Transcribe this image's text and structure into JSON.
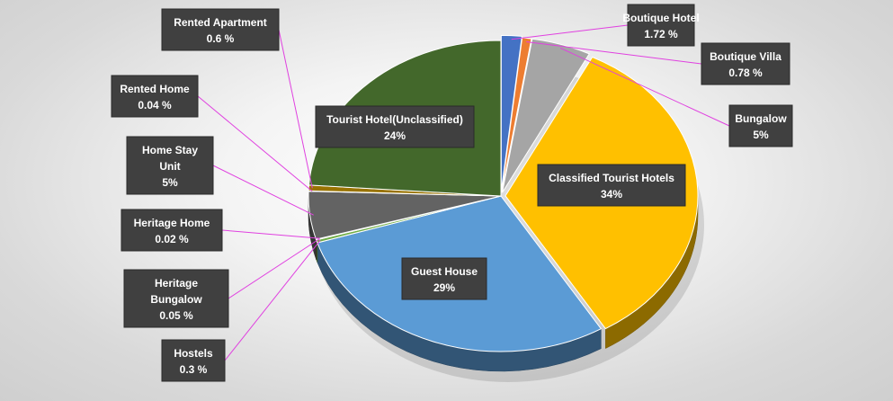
{
  "chart_data": {
    "type": "pie",
    "title": "",
    "slices": [
      {
        "label": "Boutique Hotel",
        "value_text": "1.72 %",
        "value": 1.72,
        "color": "#4472c4"
      },
      {
        "label": "Boutique Villa",
        "value_text": "0.78 %",
        "value": 0.78,
        "color": "#ed7d31"
      },
      {
        "label": "Bungalow",
        "value_text": "5%",
        "value": 5,
        "color": "#a5a5a5"
      },
      {
        "label": "Classified Tourist Hotels",
        "value_text": "34%",
        "value": 34,
        "color": "#ffc000"
      },
      {
        "label": "Guest House",
        "value_text": "29%",
        "value": 29,
        "color": "#5b9bd5"
      },
      {
        "label": "Hostels",
        "value_text": "0.3 %",
        "value": 0.3,
        "color": "#70ad47"
      },
      {
        "label": "Heritage Bungalow",
        "value_text": "0.05 %",
        "value": 0.05,
        "color": "#264478"
      },
      {
        "label": "Heritage Home",
        "value_text": "0.02 %",
        "value": 0.02,
        "color": "#9e480e"
      },
      {
        "label": "Home Stay Unit",
        "value_text": "5%",
        "value": 5,
        "color": "#636363"
      },
      {
        "label": "Rented Home",
        "value_text": "0.04 %",
        "value": 0.04,
        "color": "#997300"
      },
      {
        "label": "Rented Apartment",
        "value_text": "0.6 %",
        "value": 0.6,
        "color": "#997300"
      },
      {
        "label": "Tourist Hotel(Unclassified)",
        "value_text": "24%",
        "value": 24,
        "color": "#43682b"
      }
    ],
    "label_style": "callout",
    "legend": "none"
  }
}
